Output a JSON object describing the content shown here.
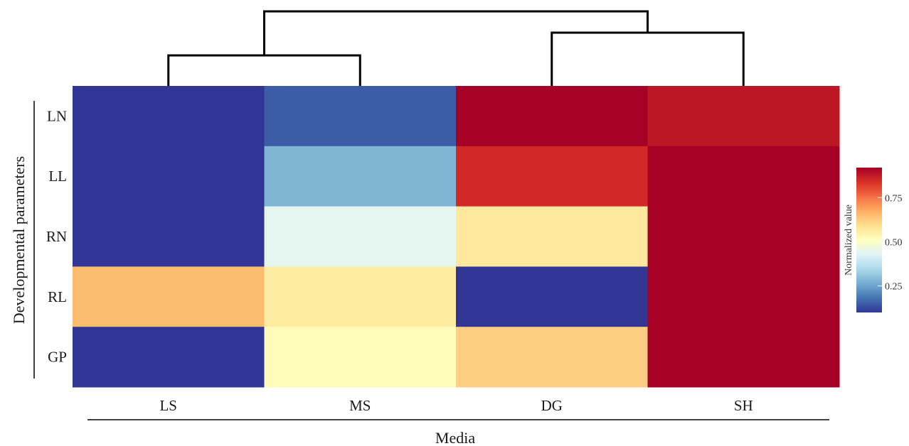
{
  "chart_data": {
    "type": "heatmap",
    "x_categories": [
      "LS",
      "MS",
      "DG",
      "SH"
    ],
    "y_categories": [
      "LN",
      "LL",
      "RN",
      "RL",
      "GP"
    ],
    "xlabel": "Media",
    "ylabel": "Developmental parameters",
    "values": [
      [
        0.1,
        0.15,
        0.92,
        0.88
      ],
      [
        0.1,
        0.28,
        0.85,
        0.92
      ],
      [
        0.1,
        0.44,
        0.57,
        0.92
      ],
      [
        0.65,
        0.56,
        0.1,
        0.92
      ],
      [
        0.1,
        0.52,
        0.62,
        0.92
      ]
    ],
    "colorbar": {
      "title": "Normalized value",
      "ticks": [
        0.25,
        0.5,
        0.75
      ],
      "tick_labels": [
        "0.25",
        "0.50",
        "0.75"
      ],
      "range": [
        0.1,
        0.92
      ],
      "colors": [
        "#313695",
        "#4575b4",
        "#74add1",
        "#abd9e9",
        "#e0f3f8",
        "#ffffbf",
        "#fee090",
        "#fdae61",
        "#f46d43",
        "#d73027",
        "#a50026"
      ]
    },
    "dendrogram": {
      "clusters": [
        [
          "LS",
          "MS"
        ],
        [
          "DG",
          "SH"
        ]
      ]
    }
  }
}
